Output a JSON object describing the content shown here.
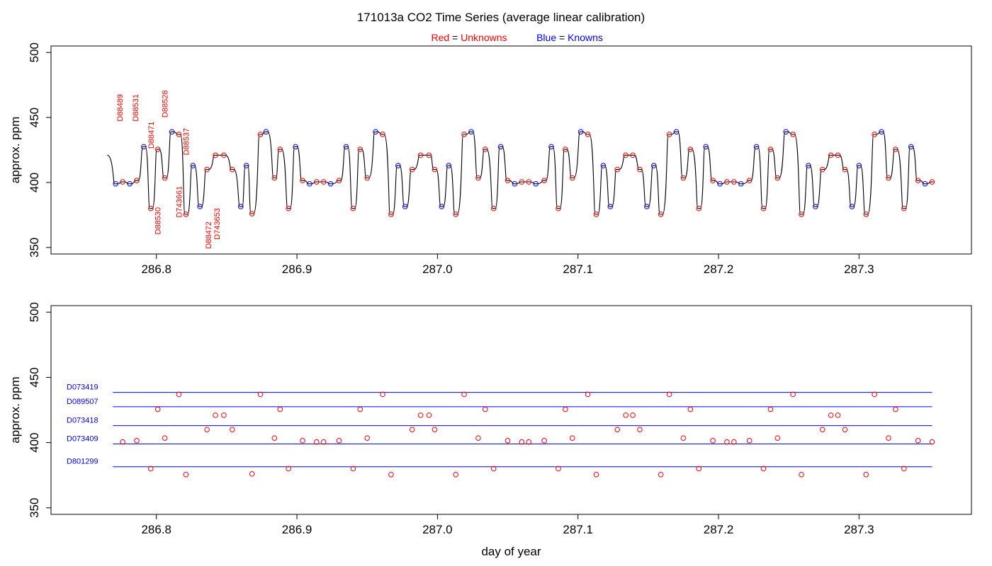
{
  "title": "171013a   CO2 Time Series (average linear calibration)",
  "legend": {
    "red_label": "Red",
    "eq": " = ",
    "red_value": "Unknowns",
    "blue_label": "Blue",
    "blue_value": "Knowns",
    "placement": "top-center"
  },
  "colors": {
    "unknown": "#ff0000",
    "known": "#0000ff",
    "trace": "#000000",
    "axis": "#000000"
  },
  "chart_data": [
    {
      "type": "line",
      "panel": "top",
      "xlabel": "",
      "ylabel": "approx. ppm",
      "xlim": [
        286.725,
        287.38
      ],
      "ylim": [
        345,
        505
      ],
      "x_ticks": [
        286.8,
        286.9,
        287.0,
        287.1,
        287.2,
        287.3
      ],
      "x_tick_labels": [
        "286.8",
        "286.9",
        "287.0",
        "287.1",
        "287.2",
        "287.3"
      ],
      "y_ticks": [
        350,
        400,
        450,
        500
      ],
      "y_tick_labels": [
        "350",
        "400",
        "450",
        "500"
      ],
      "start": {
        "x": 286.765,
        "y": 421
      },
      "series": [
        {
          "values": [
            [
              286.771,
              399,
              "K"
            ],
            [
              286.776,
              400.5,
              "U"
            ],
            [
              286.781,
              399,
              "K"
            ],
            [
              286.786,
              401.5,
              "U"
            ],
            [
              286.791,
              427.5,
              "K"
            ],
            [
              286.796,
              380,
              "U"
            ],
            [
              286.801,
              425.5,
              "U"
            ],
            [
              286.806,
              403.5,
              "U"
            ],
            [
              286.811,
              439,
              "K"
            ],
            [
              286.816,
              437,
              "U"
            ],
            [
              286.821,
              375.5,
              "U"
            ],
            [
              286.826,
              413,
              "K"
            ],
            [
              286.831,
              381.5,
              "K"
            ],
            [
              286.836,
              410,
              "U"
            ],
            [
              286.842,
              421,
              "U"
            ],
            [
              286.848,
              421,
              "U"
            ],
            [
              286.854,
              410,
              "U"
            ],
            [
              286.86,
              381.5,
              "K"
            ],
            [
              286.864,
              413,
              "K"
            ],
            [
              286.868,
              376,
              "U"
            ],
            [
              286.874,
              437,
              "U"
            ],
            [
              286.878,
              439,
              "K"
            ],
            [
              286.884,
              403.5,
              "U"
            ],
            [
              286.888,
              425.5,
              "U"
            ],
            [
              286.894,
              380,
              "U"
            ],
            [
              286.899,
              427.5,
              "K"
            ],
            [
              286.904,
              401.5,
              "U"
            ],
            [
              286.909,
              399,
              "K"
            ],
            [
              286.914,
              400.5,
              "U"
            ],
            [
              286.919,
              400.5,
              "U"
            ],
            [
              286.924,
              399,
              "K"
            ],
            [
              286.93,
              401.5,
              "U"
            ],
            [
              286.935,
              427.5,
              "K"
            ],
            [
              286.94,
              380,
              "U"
            ],
            [
              286.945,
              425.5,
              "U"
            ],
            [
              286.95,
              403.5,
              "U"
            ],
            [
              286.956,
              439,
              "K"
            ],
            [
              286.961,
              437,
              "U"
            ],
            [
              286.967,
              375.5,
              "U"
            ],
            [
              286.972,
              413,
              "K"
            ],
            [
              286.977,
              381.5,
              "K"
            ],
            [
              286.982,
              410,
              "U"
            ],
            [
              286.988,
              421,
              "U"
            ],
            [
              286.994,
              421,
              "U"
            ],
            [
              286.998,
              410,
              "U"
            ],
            [
              287.003,
              381.5,
              "K"
            ],
            [
              287.008,
              413,
              "K"
            ],
            [
              287.013,
              375.5,
              "U"
            ],
            [
              287.019,
              437,
              "U"
            ],
            [
              287.024,
              439,
              "K"
            ],
            [
              287.029,
              403.5,
              "U"
            ],
            [
              287.034,
              425.5,
              "U"
            ],
            [
              287.04,
              380,
              "U"
            ],
            [
              287.045,
              427.5,
              "K"
            ],
            [
              287.05,
              401.5,
              "U"
            ],
            [
              287.055,
              399,
              "K"
            ],
            [
              287.06,
              400.5,
              "U"
            ],
            [
              287.065,
              400.5,
              "U"
            ],
            [
              287.07,
              399,
              "K"
            ],
            [
              287.076,
              401.5,
              "U"
            ],
            [
              287.081,
              427.5,
              "K"
            ],
            [
              287.086,
              380,
              "U"
            ],
            [
              287.091,
              425.5,
              "U"
            ],
            [
              287.096,
              403.5,
              "U"
            ],
            [
              287.102,
              439,
              "K"
            ],
            [
              287.107,
              437,
              "U"
            ],
            [
              287.113,
              375.5,
              "U"
            ],
            [
              287.118,
              413,
              "K"
            ],
            [
              287.123,
              381.5,
              "K"
            ],
            [
              287.128,
              410,
              "U"
            ],
            [
              287.134,
              421,
              "U"
            ],
            [
              287.139,
              421,
              "U"
            ],
            [
              287.144,
              410,
              "U"
            ],
            [
              287.149,
              381.5,
              "K"
            ],
            [
              287.154,
              413,
              "K"
            ],
            [
              287.159,
              375.5,
              "U"
            ],
            [
              287.165,
              437,
              "U"
            ],
            [
              287.17,
              439,
              "K"
            ],
            [
              287.175,
              403.5,
              "U"
            ],
            [
              287.18,
              425.5,
              "U"
            ],
            [
              287.186,
              380,
              "U"
            ],
            [
              287.191,
              427.5,
              "K"
            ],
            [
              287.196,
              401.5,
              "U"
            ],
            [
              287.201,
              399,
              "K"
            ],
            [
              287.206,
              400.5,
              "U"
            ],
            [
              287.211,
              400.5,
              "U"
            ],
            [
              287.216,
              399,
              "K"
            ],
            [
              287.222,
              401.5,
              "U"
            ],
            [
              287.227,
              427.5,
              "K"
            ],
            [
              287.232,
              380,
              "U"
            ],
            [
              287.237,
              425.5,
              "U"
            ],
            [
              287.242,
              403.5,
              "U"
            ],
            [
              287.248,
              439,
              "K"
            ],
            [
              287.253,
              437,
              "U"
            ],
            [
              287.259,
              375.5,
              "U"
            ],
            [
              287.264,
              413,
              "K"
            ],
            [
              287.269,
              381.5,
              "K"
            ],
            [
              287.274,
              410,
              "U"
            ],
            [
              287.28,
              421,
              "U"
            ],
            [
              287.285,
              421,
              "U"
            ],
            [
              287.29,
              410,
              "U"
            ],
            [
              287.295,
              381.5,
              "K"
            ],
            [
              287.3,
              413,
              "K"
            ],
            [
              287.305,
              375.5,
              "U"
            ],
            [
              287.311,
              437,
              "U"
            ],
            [
              287.316,
              439,
              "K"
            ],
            [
              287.321,
              403.5,
              "U"
            ],
            [
              287.326,
              425.5,
              "U"
            ],
            [
              287.332,
              380,
              "U"
            ],
            [
              287.337,
              427.5,
              "K"
            ],
            [
              287.342,
              401.5,
              "U"
            ],
            [
              287.347,
              399,
              "K"
            ],
            [
              287.352,
              400.5,
              "U"
            ]
          ]
        }
      ],
      "annotations": [
        {
          "text": "D88489",
          "x": 286.774,
          "y": 447
        },
        {
          "text": "D88531",
          "x": 286.785,
          "y": 447
        },
        {
          "text": "D88528",
          "x": 286.806,
          "y": 450
        },
        {
          "text": "D88471",
          "x": 286.796,
          "y": 426
        },
        {
          "text": "D88537",
          "x": 286.821,
          "y": 421
        },
        {
          "text": "D88530",
          "x": 286.801,
          "y": 360
        },
        {
          "text": "D743661",
          "x": 286.816,
          "y": 373
        },
        {
          "text": "D88472",
          "x": 286.837,
          "y": 349
        },
        {
          "text": "D743653",
          "x": 286.843,
          "y": 356
        }
      ]
    },
    {
      "type": "scatter",
      "panel": "bottom",
      "xlabel": "day of year",
      "ylabel": "approx. ppm",
      "xlim": [
        286.725,
        287.38
      ],
      "ylim": [
        345,
        505
      ],
      "x_ticks": [
        286.8,
        286.9,
        287.0,
        287.1,
        287.2,
        287.3
      ],
      "x_tick_labels": [
        "286.8",
        "286.9",
        "287.0",
        "287.1",
        "287.2",
        "287.3"
      ],
      "y_ticks": [
        350,
        400,
        450,
        500
      ],
      "y_tick_labels": [
        "350",
        "400",
        "450",
        "500"
      ],
      "reference_lines": [
        {
          "label": "D073419",
          "y": 438.5
        },
        {
          "label": "D089507",
          "y": 427.5
        },
        {
          "label": "D073418",
          "y": 413
        },
        {
          "label": "D073409",
          "y": 399
        },
        {
          "label": "D801299",
          "y": 381.5
        }
      ],
      "reference_x_range": [
        286.769,
        287.352
      ],
      "series": [
        {
          "values": [
            [
              286.776,
              400.5
            ],
            [
              286.786,
              401.5
            ],
            [
              286.796,
              380
            ],
            [
              286.801,
              425.5
            ],
            [
              286.806,
              403.5
            ],
            [
              286.816,
              437
            ],
            [
              286.821,
              375.5
            ],
            [
              286.836,
              410
            ],
            [
              286.842,
              421
            ],
            [
              286.848,
              421
            ],
            [
              286.854,
              410
            ],
            [
              286.868,
              376
            ],
            [
              286.874,
              437
            ],
            [
              286.884,
              403.5
            ],
            [
              286.888,
              425.5
            ],
            [
              286.894,
              380
            ],
            [
              286.904,
              401.5
            ],
            [
              286.914,
              400.5
            ],
            [
              286.919,
              400.5
            ],
            [
              286.93,
              401.5
            ],
            [
              286.94,
              380
            ],
            [
              286.945,
              425.5
            ],
            [
              286.95,
              403.5
            ],
            [
              286.961,
              437
            ],
            [
              286.967,
              375.5
            ],
            [
              286.982,
              410
            ],
            [
              286.988,
              421
            ],
            [
              286.994,
              421
            ],
            [
              286.998,
              410
            ],
            [
              287.013,
              375.5
            ],
            [
              287.019,
              437
            ],
            [
              287.029,
              403.5
            ],
            [
              287.034,
              425.5
            ],
            [
              287.04,
              380
            ],
            [
              287.05,
              401.5
            ],
            [
              287.06,
              400.5
            ],
            [
              287.065,
              400.5
            ],
            [
              287.076,
              401.5
            ],
            [
              287.086,
              380
            ],
            [
              287.091,
              425.5
            ],
            [
              287.096,
              403.5
            ],
            [
              287.107,
              437
            ],
            [
              287.113,
              375.5
            ],
            [
              287.128,
              410
            ],
            [
              287.134,
              421
            ],
            [
              287.139,
              421
            ],
            [
              287.144,
              410
            ],
            [
              287.159,
              375.5
            ],
            [
              287.165,
              437
            ],
            [
              287.175,
              403.5
            ],
            [
              287.18,
              425.5
            ],
            [
              287.186,
              380
            ],
            [
              287.196,
              401.5
            ],
            [
              287.206,
              400.5
            ],
            [
              287.211,
              400.5
            ],
            [
              287.222,
              401.5
            ],
            [
              287.232,
              380
            ],
            [
              287.237,
              425.5
            ],
            [
              287.242,
              403.5
            ],
            [
              287.253,
              437
            ],
            [
              287.259,
              375.5
            ],
            [
              287.274,
              410
            ],
            [
              287.28,
              421
            ],
            [
              287.285,
              421
            ],
            [
              287.29,
              410
            ],
            [
              287.305,
              375.5
            ],
            [
              287.311,
              437
            ],
            [
              287.321,
              403.5
            ],
            [
              287.326,
              425.5
            ],
            [
              287.332,
              380
            ],
            [
              287.342,
              401.5
            ],
            [
              287.352,
              400.5
            ]
          ]
        }
      ]
    }
  ]
}
